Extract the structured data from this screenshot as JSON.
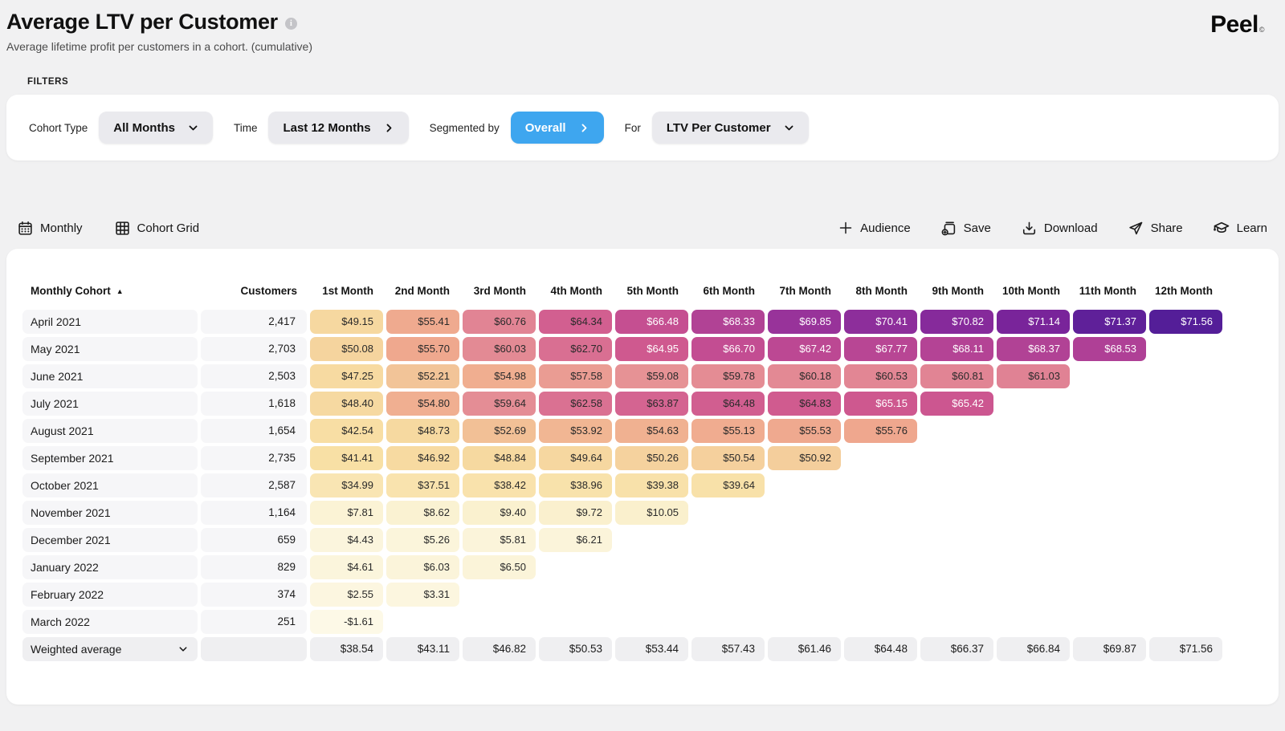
{
  "header": {
    "title": "Average LTV per Customer",
    "subtitle": "Average lifetime profit per customers in a cohort. (cumulative)",
    "logo": "Peel",
    "logo_mark": "©"
  },
  "filters": {
    "section_label": "FILTERS",
    "items": [
      {
        "label": "Cohort Type",
        "value": "All Months"
      },
      {
        "label": "Time",
        "value": "Last 12 Months"
      },
      {
        "label": "Segmented by",
        "value": "Overall"
      },
      {
        "label": "For",
        "value": "LTV Per Customer"
      }
    ]
  },
  "toolbar": {
    "left": [
      {
        "icon": "calendar-icon",
        "label": "Monthly"
      },
      {
        "icon": "grid-icon",
        "label": "Cohort Grid"
      }
    ],
    "right": [
      {
        "icon": "plus-icon",
        "label": "Audience"
      },
      {
        "icon": "save-icon",
        "label": "Save"
      },
      {
        "icon": "download-icon",
        "label": "Download"
      },
      {
        "icon": "share-icon",
        "label": "Share"
      },
      {
        "icon": "learn-icon",
        "label": "Learn"
      }
    ]
  },
  "table": {
    "first_column": "Monthly Cohort",
    "sort_indicator": "▲",
    "columns": [
      "Customers",
      "1st Month",
      "2nd Month",
      "3rd Month",
      "4th Month",
      "5th Month",
      "6th Month",
      "7th Month",
      "8th Month",
      "9th Month",
      "10th Month",
      "11th Month",
      "12th Month"
    ],
    "rows": [
      {
        "cohort": "April 2021",
        "customers": "2,417",
        "values": [
          49.15,
          55.41,
          60.76,
          64.34,
          66.48,
          68.33,
          69.85,
          70.41,
          70.82,
          71.14,
          71.37,
          71.56
        ]
      },
      {
        "cohort": "May 2021",
        "customers": "2,703",
        "values": [
          50.08,
          55.7,
          60.03,
          62.7,
          64.95,
          66.7,
          67.42,
          67.77,
          68.11,
          68.37,
          68.53
        ]
      },
      {
        "cohort": "June 2021",
        "customers": "2,503",
        "values": [
          47.25,
          52.21,
          54.98,
          57.58,
          59.08,
          59.78,
          60.18,
          60.53,
          60.81,
          61.03
        ]
      },
      {
        "cohort": "July 2021",
        "customers": "1,618",
        "values": [
          48.4,
          54.8,
          59.64,
          62.58,
          63.87,
          64.48,
          64.83,
          65.15,
          65.42
        ]
      },
      {
        "cohort": "August 2021",
        "customers": "1,654",
        "values": [
          42.54,
          48.73,
          52.69,
          53.92,
          54.63,
          55.13,
          55.53,
          55.76
        ]
      },
      {
        "cohort": "September 2021",
        "customers": "2,735",
        "values": [
          41.41,
          46.92,
          48.84,
          49.64,
          50.26,
          50.54,
          50.92
        ]
      },
      {
        "cohort": "October 2021",
        "customers": "2,587",
        "values": [
          34.99,
          37.51,
          38.42,
          38.96,
          39.38,
          39.64
        ]
      },
      {
        "cohort": "November 2021",
        "customers": "1,164",
        "values": [
          7.81,
          8.62,
          9.4,
          9.72,
          10.05
        ]
      },
      {
        "cohort": "December 2021",
        "customers": "659",
        "values": [
          4.43,
          5.26,
          5.81,
          6.21
        ]
      },
      {
        "cohort": "January 2022",
        "customers": "829",
        "values": [
          4.61,
          6.03,
          6.5
        ]
      },
      {
        "cohort": "February 2022",
        "customers": "374",
        "values": [
          2.55,
          3.31
        ]
      },
      {
        "cohort": "March 2022",
        "customers": "251",
        "values": [
          -1.61
        ]
      }
    ],
    "weighted_average": {
      "label": "Weighted average",
      "values": [
        38.54,
        43.11,
        46.82,
        50.53,
        53.44,
        57.43,
        61.46,
        64.48,
        66.37,
        66.84,
        69.87,
        71.56
      ]
    }
  },
  "colors": {
    "accent_blue": "#3EA6EF",
    "page_bg": "#F1F1F2",
    "row_label_bg": "#F6F6F8",
    "summary_cell_bg": "#EFEFF1",
    "heatmap_scale": [
      [
        -2.0,
        "#FDF9E8"
      ],
      [
        6.5,
        "#FBF4D9"
      ],
      [
        10.1,
        "#FAF0CD"
      ],
      [
        35.0,
        "#F9E5B3"
      ],
      [
        42.0,
        "#F8DFA4"
      ],
      [
        49.5,
        "#F6D8A0"
      ],
      [
        52.5,
        "#F2C297"
      ],
      [
        55.8,
        "#EFA78E"
      ],
      [
        58.5,
        "#E89795"
      ],
      [
        61.0,
        "#E08294"
      ],
      [
        63.0,
        "#D86C92"
      ],
      [
        65.0,
        "#CF598F"
      ],
      [
        67.0,
        "#C14B92"
      ],
      [
        68.6,
        "#AE4096"
      ],
      [
        69.9,
        "#97329A"
      ],
      [
        70.85,
        "#852A9B"
      ],
      [
        71.15,
        "#79249A"
      ],
      [
        71.37,
        "#5F2099"
      ],
      [
        71.6,
        "#521D98"
      ]
    ],
    "white_text_threshold": 64.9
  }
}
